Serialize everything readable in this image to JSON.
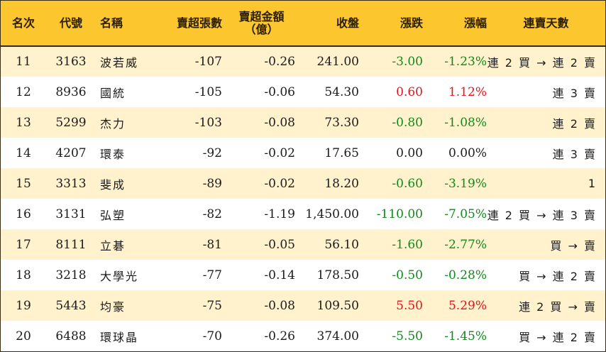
{
  "table": {
    "headers": {
      "rank": "名次",
      "code": "代號",
      "name": "名稱",
      "net_sell_shares": "賣超張數",
      "net_sell_amount_line1": "賣超金額",
      "net_sell_amount_line2": "（億）",
      "close": "收盤",
      "change": "漲跌",
      "change_pct": "漲幅",
      "streak": "連賣天數"
    },
    "rows": [
      {
        "rank": "11",
        "code": "3163",
        "name": "波若威",
        "net_sell_shares": "-107",
        "net_sell_amount": "-0.26",
        "close": "241.00",
        "change": "-3.00",
        "change_pct": "-1.23%",
        "direction": "down",
        "streak": "連 2 買 → 連 2 賣"
      },
      {
        "rank": "12",
        "code": "8936",
        "name": "國統",
        "net_sell_shares": "-105",
        "net_sell_amount": "-0.06",
        "close": "54.30",
        "change": "0.60",
        "change_pct": "1.12%",
        "direction": "up",
        "streak": "連 3 賣"
      },
      {
        "rank": "13",
        "code": "5299",
        "name": "杰力",
        "net_sell_shares": "-103",
        "net_sell_amount": "-0.08",
        "close": "73.30",
        "change": "-0.80",
        "change_pct": "-1.08%",
        "direction": "down",
        "streak": "連 2 賣"
      },
      {
        "rank": "14",
        "code": "4207",
        "name": "環泰",
        "net_sell_shares": "-92",
        "net_sell_amount": "-0.02",
        "close": "17.65",
        "change": "0.00",
        "change_pct": "0.00%",
        "direction": "flat",
        "streak": "連 3 賣"
      },
      {
        "rank": "15",
        "code": "3313",
        "name": "斐成",
        "net_sell_shares": "-89",
        "net_sell_amount": "-0.02",
        "close": "18.20",
        "change": "-0.60",
        "change_pct": "-3.19%",
        "direction": "down",
        "streak": "1"
      },
      {
        "rank": "16",
        "code": "3131",
        "name": "弘塑",
        "net_sell_shares": "-82",
        "net_sell_amount": "-1.19",
        "close": "1,450.00",
        "change": "-110.00",
        "change_pct": "-7.05%",
        "direction": "down",
        "streak": "連 2 買 → 連 3 賣"
      },
      {
        "rank": "17",
        "code": "8111",
        "name": "立碁",
        "net_sell_shares": "-81",
        "net_sell_amount": "-0.05",
        "close": "56.10",
        "change": "-1.60",
        "change_pct": "-2.77%",
        "direction": "down",
        "streak": "買 → 賣"
      },
      {
        "rank": "18",
        "code": "3218",
        "name": "大學光",
        "net_sell_shares": "-77",
        "net_sell_amount": "-0.14",
        "close": "178.50",
        "change": "-0.50",
        "change_pct": "-0.28%",
        "direction": "down",
        "streak": "買 → 連 2 賣"
      },
      {
        "rank": "19",
        "code": "5443",
        "name": "均豪",
        "net_sell_shares": "-75",
        "net_sell_amount": "-0.08",
        "close": "109.50",
        "change": "5.50",
        "change_pct": "5.29%",
        "direction": "up",
        "streak": "連 2 買 → 賣"
      },
      {
        "rank": "20",
        "code": "6488",
        "name": "環球晶",
        "net_sell_shares": "-70",
        "net_sell_amount": "-0.26",
        "close": "374.00",
        "change": "-5.50",
        "change_pct": "-1.45%",
        "direction": "down",
        "streak": "買 → 連 2 賣"
      }
    ]
  },
  "colors": {
    "header_bg": "#fcc72e",
    "stripe_bg": "#fff2cc",
    "up": "#e3141c",
    "down": "#11891c",
    "border": "#3a2a10"
  }
}
